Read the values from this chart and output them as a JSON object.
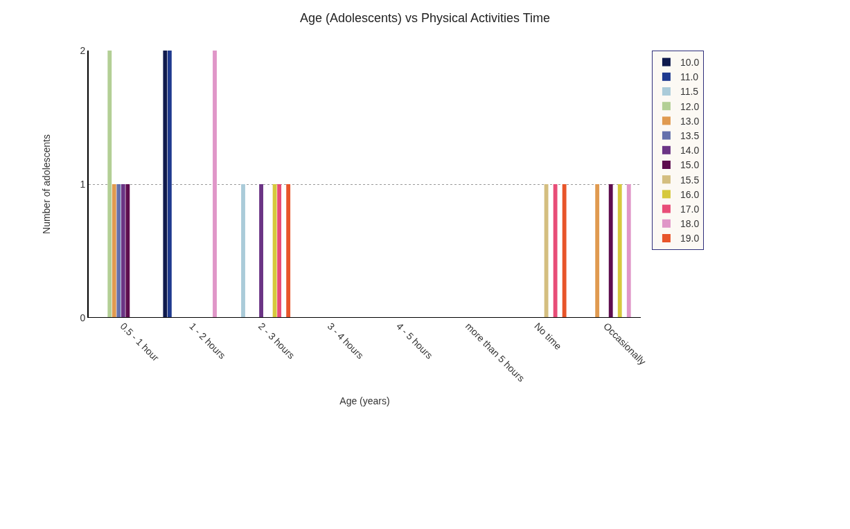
{
  "chart_data": {
    "type": "bar",
    "title": "Age (Adolescents) vs Physical Activities Time",
    "xlabel": "Age (years)",
    "ylabel": "Number of adolescents",
    "categories": [
      "0.5 - 1 hour",
      "1 - 2 hours",
      "2 - 3 hours",
      "3 - 4 hours",
      "4 - 5 hours",
      "more than 5 hours",
      "No time",
      "Occasionally"
    ],
    "series": [
      {
        "name": "10.0",
        "color": "#0f1a4d",
        "values": [
          null,
          2,
          null,
          null,
          null,
          null,
          null,
          null
        ]
      },
      {
        "name": "11.0",
        "color": "#1f3a8f",
        "values": [
          null,
          2,
          null,
          null,
          null,
          null,
          null,
          null
        ]
      },
      {
        "name": "11.5",
        "color": "#aacbd9",
        "values": [
          null,
          null,
          1,
          null,
          null,
          null,
          null,
          null
        ]
      },
      {
        "name": "12.0",
        "color": "#b3cf95",
        "values": [
          2,
          null,
          null,
          null,
          null,
          null,
          null,
          null
        ]
      },
      {
        "name": "13.0",
        "color": "#e09a50",
        "values": [
          1,
          null,
          null,
          null,
          null,
          null,
          null,
          1
        ]
      },
      {
        "name": "13.5",
        "color": "#6470ac",
        "values": [
          1,
          null,
          null,
          null,
          null,
          null,
          null,
          null
        ]
      },
      {
        "name": "14.0",
        "color": "#6b3485",
        "values": [
          1,
          null,
          1,
          null,
          null,
          null,
          null,
          null
        ]
      },
      {
        "name": "15.0",
        "color": "#5e0d4e",
        "values": [
          1,
          null,
          null,
          null,
          null,
          null,
          null,
          1
        ]
      },
      {
        "name": "15.5",
        "color": "#d4be80",
        "values": [
          null,
          null,
          null,
          null,
          null,
          null,
          1,
          null
        ]
      },
      {
        "name": "16.0",
        "color": "#d6c93c",
        "values": [
          null,
          null,
          1,
          null,
          null,
          null,
          null,
          1
        ]
      },
      {
        "name": "17.0",
        "color": "#e84d78",
        "values": [
          null,
          null,
          1,
          null,
          null,
          null,
          1,
          null
        ]
      },
      {
        "name": "18.0",
        "color": "#e096c8",
        "values": [
          null,
          2,
          null,
          null,
          null,
          null,
          null,
          1
        ]
      },
      {
        "name": "19.0",
        "color": "#e8552a",
        "values": [
          null,
          null,
          1,
          null,
          null,
          null,
          1,
          null
        ]
      }
    ],
    "ylim": [
      0,
      2
    ],
    "yticks": [
      0,
      1,
      2
    ],
    "grid": "y",
    "legend": "right"
  }
}
